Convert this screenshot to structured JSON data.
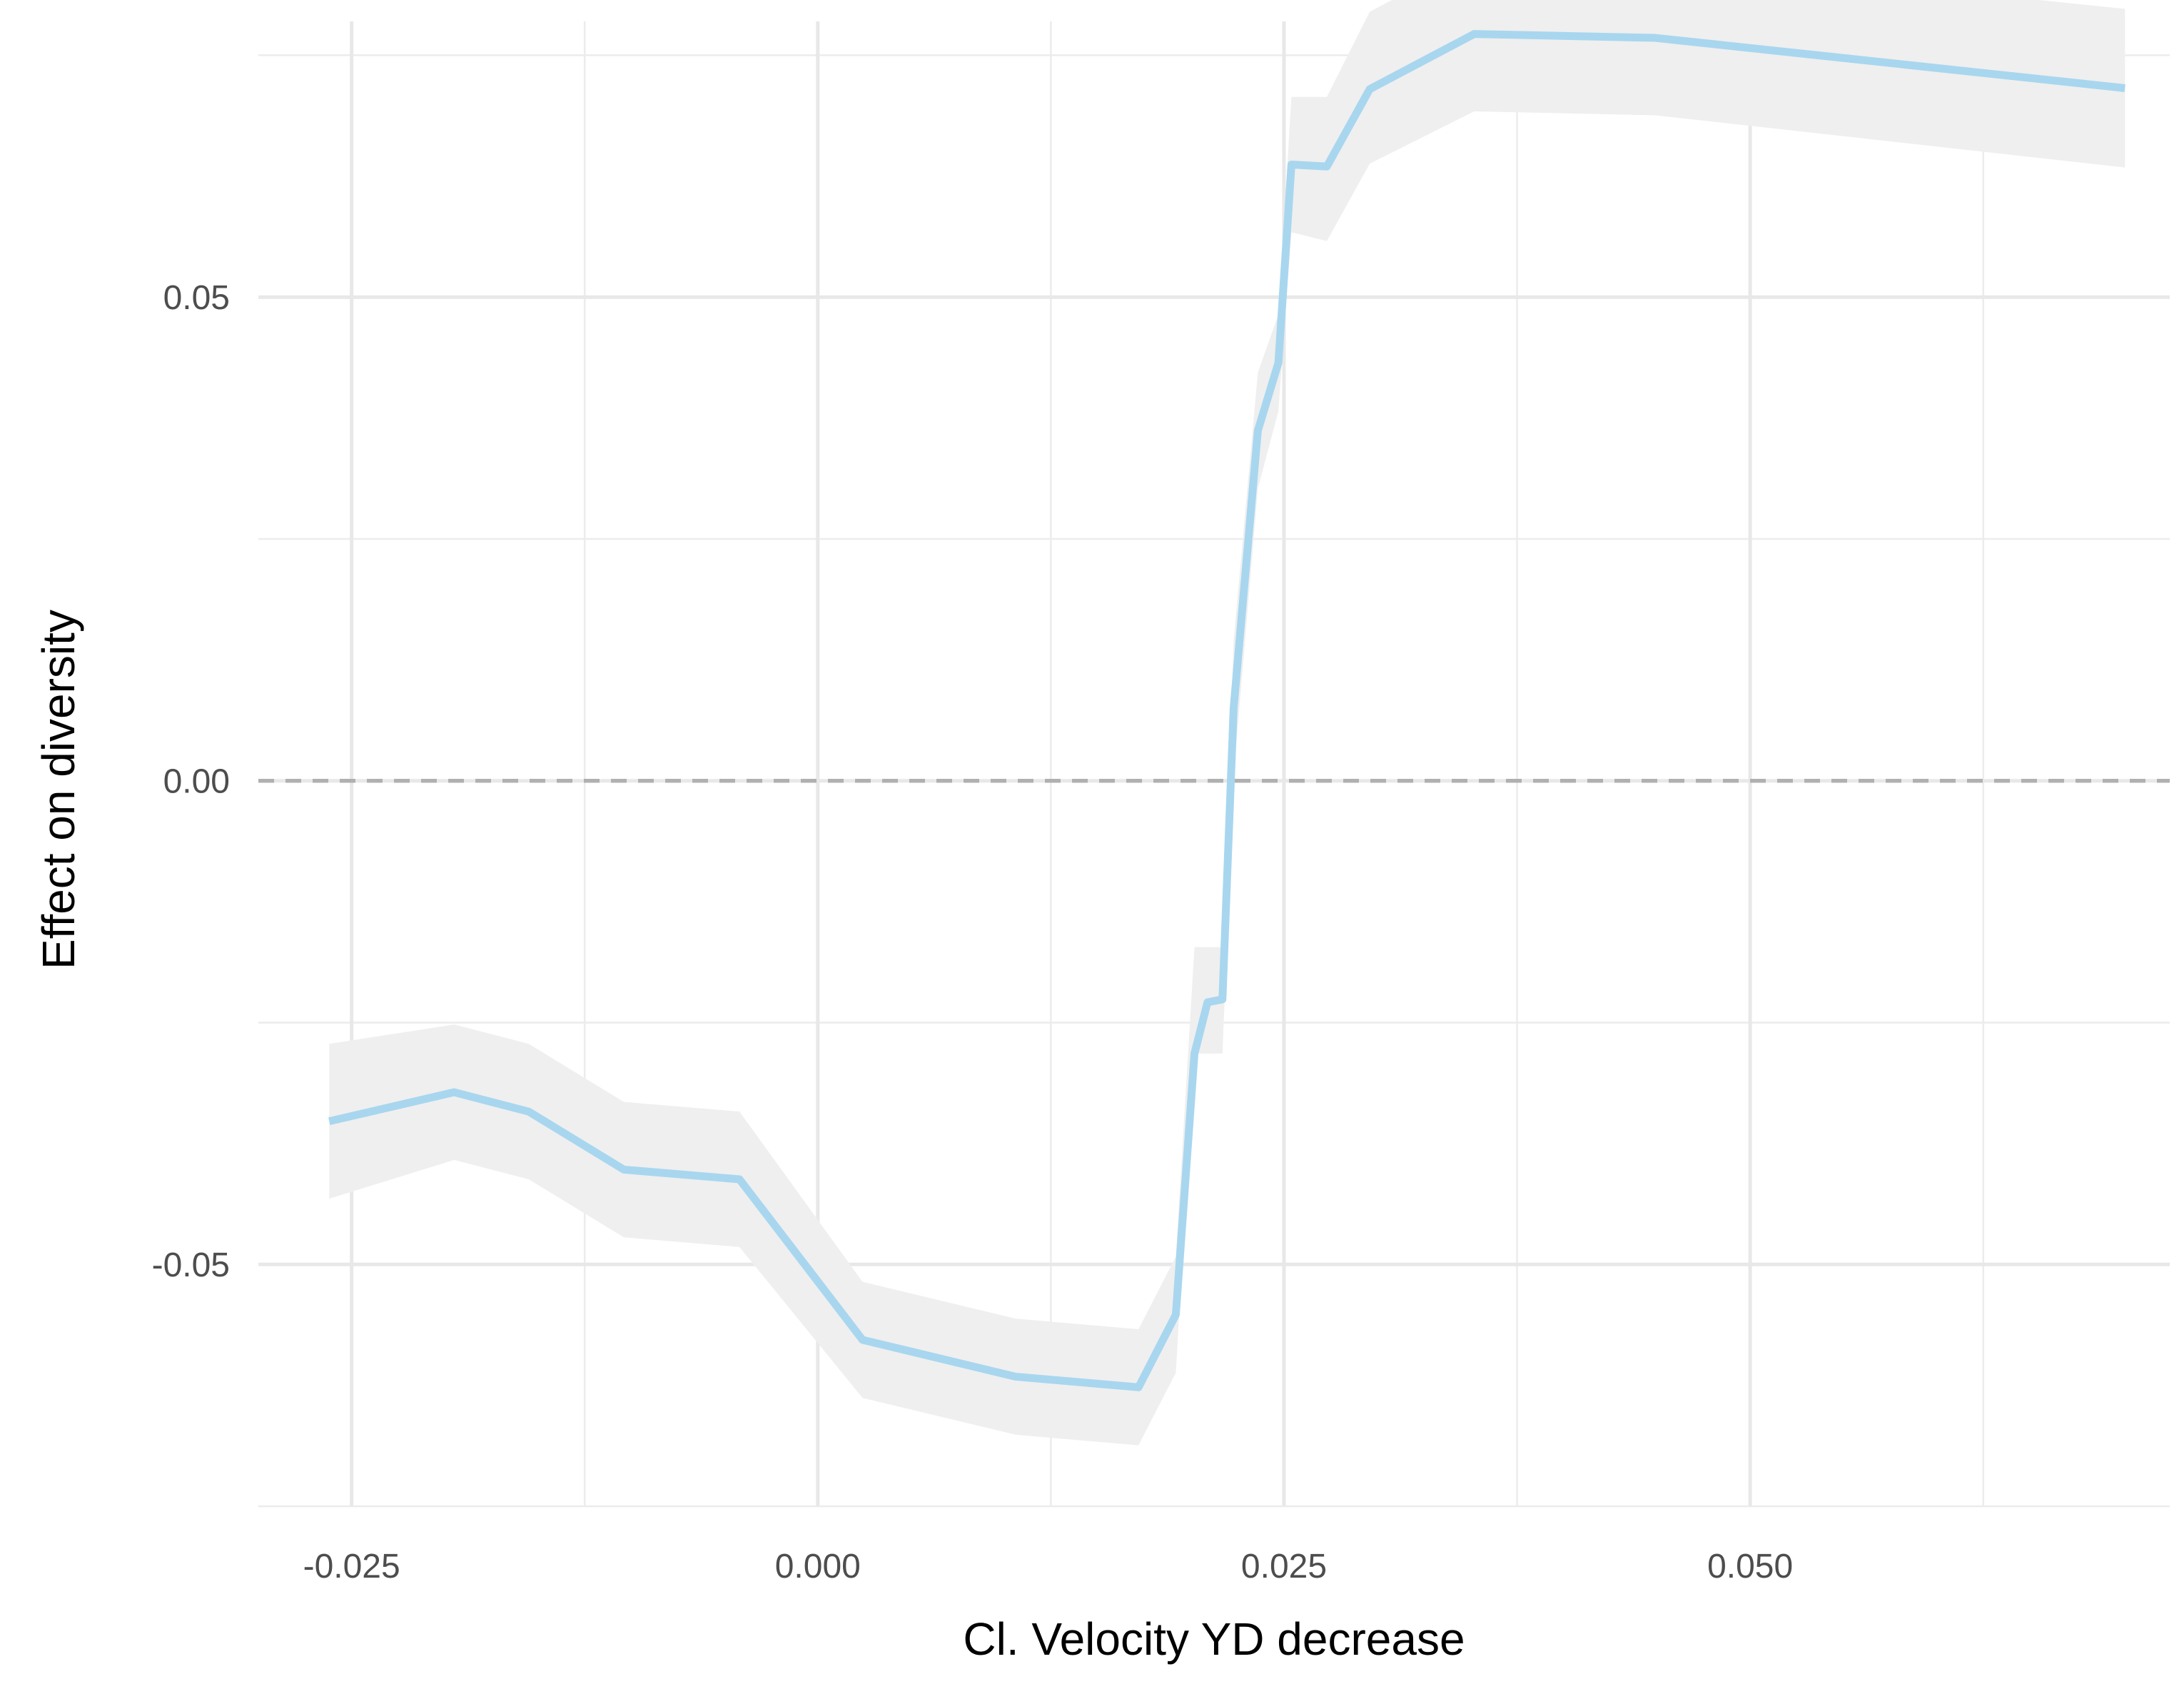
{
  "chart_data": {
    "type": "line",
    "title": "",
    "xlabel": "Cl. Velocity YD decrease",
    "ylabel": "Effect on diversity",
    "xlim": [
      -0.03,
      0.0725
    ],
    "ylim": [
      -0.075,
      0.0785
    ],
    "grid": true,
    "legend": "none",
    "x_ticks": [
      {
        "value": -0.025,
        "label": "-0.025"
      },
      {
        "value": 0.0,
        "label": "0.000"
      },
      {
        "value": 0.025,
        "label": "0.025"
      },
      {
        "value": 0.05,
        "label": "0.050"
      }
    ],
    "x_minor_ticks": [
      -0.0125,
      0.0125,
      0.0375,
      0.0625
    ],
    "y_ticks": [
      {
        "value": -0.05,
        "label": "-0.05"
      },
      {
        "value": 0.0,
        "label": "0.00"
      },
      {
        "value": 0.05,
        "label": "0.05"
      }
    ],
    "y_minor_ticks": [
      -0.075,
      -0.025,
      0.025,
      0.075
    ],
    "reference_line": {
      "y": 0.0,
      "style": "dashed",
      "color": "#b0b0b0"
    },
    "series": [
      {
        "color": "#a8d6ef",
        "ribbon_color": "#efefef",
        "x": [
          -0.0262,
          -0.0195,
          -0.0155,
          -0.0104,
          -0.0042,
          0.0024,
          0.0106,
          0.0172,
          0.0192,
          0.0202,
          0.0209,
          0.0217,
          0.0223,
          0.0236,
          0.0247,
          0.0254,
          0.0273,
          0.0296,
          0.0352,
          0.0449,
          0.0701
        ],
        "y": [
          -0.0352,
          -0.0322,
          -0.0342,
          -0.0402,
          -0.0412,
          -0.0578,
          -0.0616,
          -0.0627,
          -0.0552,
          -0.0282,
          -0.0229,
          -0.0226,
          0.0075,
          0.0362,
          0.0432,
          0.0637,
          0.0635,
          0.0715,
          0.0772,
          0.0768,
          0.0716
        ],
        "lower": [
          -0.0432,
          -0.0392,
          -0.0412,
          -0.0472,
          -0.0482,
          -0.0638,
          -0.0676,
          -0.0687,
          -0.0612,
          -0.0282,
          -0.0282,
          -0.0282,
          0.0005,
          0.0302,
          0.0382,
          0.0567,
          0.0558,
          0.0638,
          0.0692,
          0.0688,
          0.0634
        ],
        "upper": [
          -0.0272,
          -0.0252,
          -0.0272,
          -0.0332,
          -0.0342,
          -0.0518,
          -0.0556,
          -0.0567,
          -0.0492,
          -0.0172,
          -0.0172,
          -0.0172,
          0.0145,
          0.0422,
          0.0482,
          0.0707,
          0.0707,
          0.0795,
          0.0852,
          0.0848,
          0.0798
        ]
      }
    ]
  }
}
